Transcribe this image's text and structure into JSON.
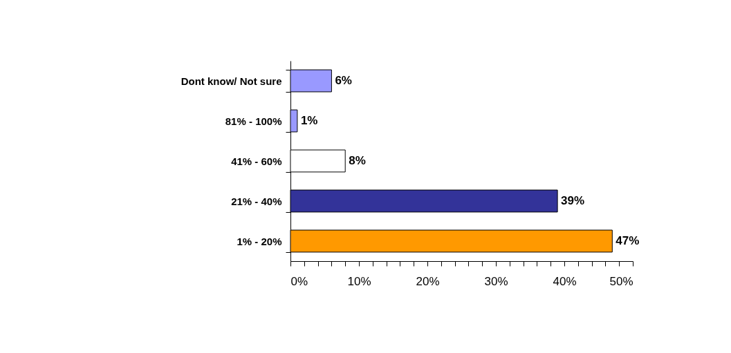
{
  "chart_data": {
    "type": "bar",
    "orientation": "horizontal",
    "categories": [
      "Dont know/ Not sure",
      "81% - 100%",
      "41% - 60%",
      "21% - 40%",
      "1% - 20%"
    ],
    "values": [
      6,
      1,
      8,
      39,
      47
    ],
    "colors": [
      "#9999ff",
      "#9999ff",
      "#ffffff",
      "#333399",
      "#ff9900"
    ],
    "value_labels": [
      "6%",
      "1%",
      "8%",
      "39%",
      "47%"
    ],
    "xlim": [
      0,
      50
    ],
    "xticks": [
      {
        "value": 0,
        "label": "0%"
      },
      {
        "value": 2,
        "label": null
      },
      {
        "value": 4,
        "label": null
      },
      {
        "value": 6,
        "label": null
      },
      {
        "value": 8,
        "label": null
      },
      {
        "value": 10,
        "label": "10%"
      },
      {
        "value": 12,
        "label": null
      },
      {
        "value": 14,
        "label": null
      },
      {
        "value": 16,
        "label": null
      },
      {
        "value": 18,
        "label": null
      },
      {
        "value": 20,
        "label": "20%"
      },
      {
        "value": 22,
        "label": null
      },
      {
        "value": 24,
        "label": null
      },
      {
        "value": 26,
        "label": null
      },
      {
        "value": 28,
        "label": null
      },
      {
        "value": 30,
        "label": "30%"
      },
      {
        "value": 32,
        "label": null
      },
      {
        "value": 34,
        "label": null
      },
      {
        "value": 36,
        "label": null
      },
      {
        "value": 38,
        "label": null
      },
      {
        "value": 40,
        "label": "40%"
      },
      {
        "value": 42,
        "label": null
      },
      {
        "value": 44,
        "label": null
      },
      {
        "value": 46,
        "label": null
      },
      {
        "value": 48,
        "label": null
      },
      {
        "value": 50,
        "label": "50%"
      }
    ],
    "grid": false,
    "legend": false
  }
}
